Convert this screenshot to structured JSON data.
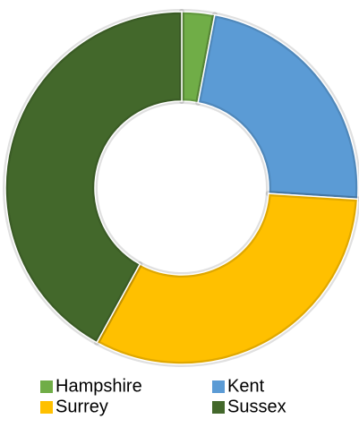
{
  "chart_data": {
    "type": "donut",
    "categories": [
      "Hampshire",
      "Kent",
      "Surrey",
      "Sussex"
    ],
    "values": [
      3,
      23,
      32,
      42
    ],
    "colors": [
      "#70ad47",
      "#5b9bd5",
      "#ffc000",
      "#43682b"
    ],
    "legend": "bottom"
  }
}
